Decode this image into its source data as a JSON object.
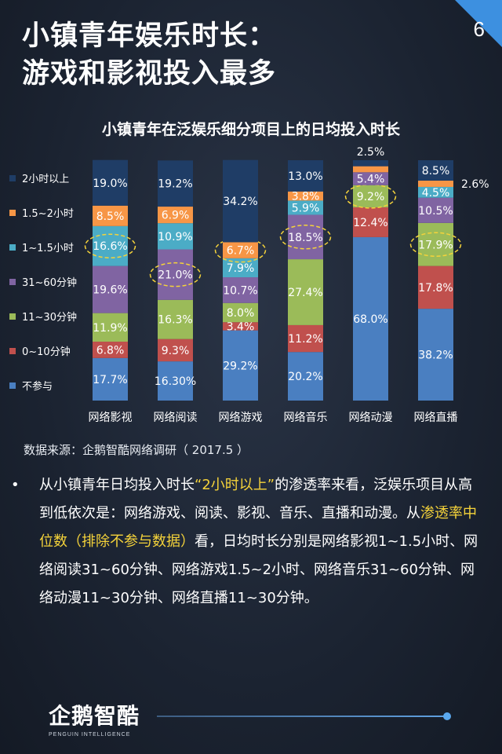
{
  "page": {
    "number": "6",
    "title_line1": "小镇青年娱乐时长：",
    "title_line2": "游戏和影视投入最多",
    "source": "数据来源：企鹅智酷网络调研（  2017.5  ）",
    "bullet": "•",
    "text_parts": [
      {
        "t": "从小镇青年日均投入时长",
        "hl": false
      },
      {
        "t": "“2小时以上”",
        "hl": true
      },
      {
        "t": "的渗透率来看，泛娱乐项目从高到低依次是：网络游戏、阅读、影视、音乐、直播和动漫。从",
        "hl": false
      },
      {
        "t": "渗透率中位数（排除不参与数据）",
        "hl": true
      },
      {
        "t": "看，日均时长分别是网络影视1~1.5小时、网络阅读31~60分钟、网络游戏1.5~2小时、网络音乐31~60分钟、网络动漫11~30分钟、网络直播11~30分钟。",
        "hl": false
      }
    ],
    "logo_text": "企鹅智酷",
    "logo_sub": "PENGUIN INTELLIGENCE"
  },
  "colors": {
    "accent": "#3d90e0",
    "highlight": "#f5d33a"
  },
  "chart_data": {
    "type": "bar",
    "stacked": true,
    "title": "小镇青年在泛娱乐细分项目上的日均投入时长",
    "categories": [
      "网络影视",
      "网络阅读",
      "网络游戏",
      "网络音乐",
      "网络动漫",
      "网络直播"
    ],
    "legend_position": "left",
    "series": [
      {
        "name": "不参与",
        "color": "#4a7fc1",
        "values": [
          17.7,
          16.3,
          29.2,
          20.2,
          68.0,
          38.2
        ],
        "labels": [
          "17.7%",
          "16.30%",
          "29.2%",
          "20.2%",
          "68.0%",
          "38.2%"
        ]
      },
      {
        "name": "0~10分钟",
        "color": "#c0504d",
        "values": [
          6.8,
          9.3,
          3.4,
          11.2,
          12.4,
          17.8
        ],
        "labels": [
          "6.8%",
          "9.3%",
          "3.4%",
          "11.2%",
          "12.4%",
          "17.8%"
        ]
      },
      {
        "name": "11~30分钟",
        "color": "#9bbb59",
        "values": [
          11.9,
          16.3,
          8.0,
          27.4,
          9.2,
          17.9
        ],
        "labels": [
          "11.9%",
          "16.3%",
          "8.0%",
          "27.4%",
          "9.2%",
          "17.9%"
        ]
      },
      {
        "name": "31~60分钟",
        "color": "#8064a2",
        "values": [
          19.6,
          21.0,
          10.7,
          18.5,
          5.4,
          10.5
        ],
        "labels": [
          "19.6%",
          "21.0%",
          "10.7%",
          "18.5%",
          "5.4%",
          "10.5%"
        ]
      },
      {
        "name": "1~1.5小时",
        "color": "#4bacc6",
        "values": [
          16.6,
          10.9,
          7.9,
          5.9,
          0.0,
          4.5
        ],
        "labels": [
          "16.6%",
          "10.9%",
          "7.9%",
          "5.9%",
          "",
          "4.5%"
        ]
      },
      {
        "name": "1.5~2小时",
        "color": "#f79646",
        "values": [
          8.5,
          6.9,
          6.7,
          3.8,
          2.5,
          2.6
        ],
        "labels": [
          "8.5%",
          "6.9%",
          "6.7%",
          "3.8%",
          "2.5%",
          "2.6%"
        ]
      },
      {
        "name": "2小时以上",
        "color": "#1f3d66",
        "values": [
          19.0,
          19.2,
          34.2,
          13.0,
          2.5,
          8.5
        ],
        "labels": [
          "19.0%",
          "19.2%",
          "34.2%",
          "13.0%",
          "",
          "8.5%"
        ]
      }
    ],
    "highlighted_segments": [
      {
        "category": "网络影视",
        "series": "1~1.5小时"
      },
      {
        "category": "网络阅读",
        "series": "31~60分钟"
      },
      {
        "category": "网络游戏",
        "series": "1.5~2小时"
      },
      {
        "category": "网络音乐",
        "series": "31~60分钟"
      },
      {
        "category": "网络动漫",
        "series": "11~30分钟"
      },
      {
        "category": "网络直播",
        "series": "11~30分钟"
      }
    ],
    "ylim": [
      0,
      100
    ]
  }
}
